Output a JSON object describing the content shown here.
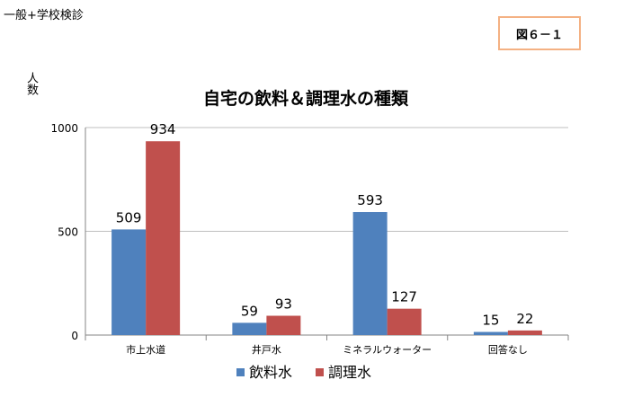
{
  "header": {
    "left_label": "一般+学校検診",
    "figure_label": "図６－１"
  },
  "chart_data": {
    "type": "bar",
    "title": "自宅の飲料＆調理水の種類",
    "ylabel": "人数",
    "xlabel": "",
    "categories": [
      "市上水道",
      "井戸水",
      "ミネラルウォーター",
      "回答なし"
    ],
    "series": [
      {
        "name": "飲料水",
        "color": "#4f81bd",
        "values": [
          509,
          59,
          593,
          15
        ]
      },
      {
        "name": "調理水",
        "color": "#c0504d",
        "values": [
          934,
          93,
          127,
          22
        ]
      }
    ],
    "ylim": [
      0,
      1000
    ],
    "yticks": [
      0,
      500,
      1000
    ],
    "grid": true,
    "legend": "bottom"
  }
}
